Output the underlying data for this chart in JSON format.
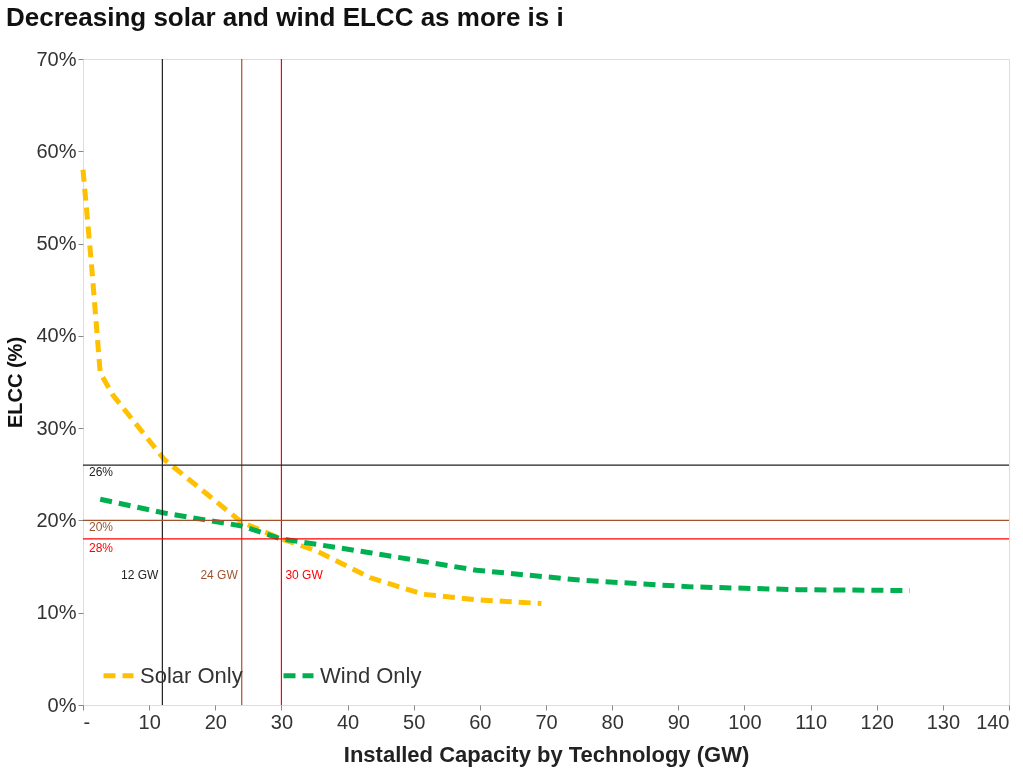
{
  "chart_data": {
    "type": "line",
    "title": "Decreasing solar and wind ELCC as more is i",
    "xlabel": "Installed Capacity by Technology (GW)",
    "ylabel": "ELCC (%)",
    "xlim": [
      0,
      140
    ],
    "xticks": [
      {
        "value": 0,
        "label": "-"
      },
      10,
      20,
      30,
      40,
      50,
      60,
      70,
      80,
      90,
      100,
      110,
      120,
      130,
      140
    ],
    "ylim": [
      0,
      70
    ],
    "yticks": [
      {
        "value": 0,
        "label": "0%"
      },
      {
        "value": 10,
        "label": "10%"
      },
      {
        "value": 20,
        "label": "20%"
      },
      {
        "value": 30,
        "label": "30%"
      },
      {
        "value": 40,
        "label": "40%"
      },
      {
        "value": 50,
        "label": "50%"
      },
      {
        "value": 60,
        "label": "60%"
      },
      {
        "value": 70,
        "label": "70%"
      }
    ],
    "grid": false,
    "legend": "bottom",
    "marker": "none",
    "line_style": "dashed",
    "series": [
      {
        "name": "Solar Only",
        "color": "#ffc000",
        "x": [
          0,
          1.3,
          2.6,
          4.5,
          12.3,
          24,
          30,
          35.3,
          43.4,
          51.4,
          59.5,
          69.3
        ],
        "values": [
          58,
          47.6,
          36,
          33.6,
          26.6,
          19.8,
          18,
          16.7,
          13.8,
          12,
          11.4,
          11
        ]
      },
      {
        "name": "Wind Only",
        "color": "#00b050",
        "x": [
          2.6,
          12.3,
          24,
          30,
          43.4,
          59.5,
          75.7,
          92,
          108,
          125
        ],
        "values": [
          22.3,
          20.8,
          19.4,
          18,
          16.5,
          14.6,
          13.5,
          12.8,
          12.5,
          12.4
        ]
      }
    ],
    "ref_lines": [
      {
        "axis": "x",
        "value": 12,
        "label": "12 GW",
        "color": "#222222"
      },
      {
        "axis": "x",
        "value": 24,
        "label": "24 GW",
        "color": "#a0522d"
      },
      {
        "axis": "x",
        "value": 30,
        "label": "30 GW",
        "color": "#ff0000"
      },
      {
        "axis": "y",
        "value": 26,
        "label": "26%",
        "color": "#222222"
      },
      {
        "axis": "y",
        "value": 20,
        "label": "20%",
        "color": "#a0522d"
      },
      {
        "axis": "y",
        "value": 18,
        "color": "#ff0000"
      }
    ],
    "annotations": [
      {
        "text": "28%",
        "x": 0,
        "y": 18
      }
    ]
  }
}
